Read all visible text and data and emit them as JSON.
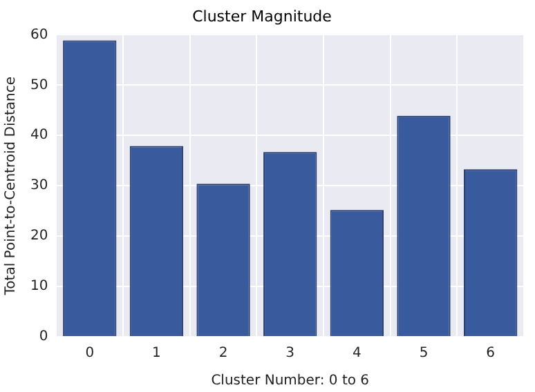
{
  "chart_data": {
    "type": "bar",
    "title": "Cluster Magnitude",
    "xlabel": "Cluster Number: 0 to 6",
    "ylabel": "Total Point-to-Centroid Distance",
    "categories": [
      "0",
      "1",
      "2",
      "3",
      "4",
      "5",
      "6"
    ],
    "values": [
      58.9,
      37.9,
      30.4,
      36.7,
      25.2,
      43.9,
      33.3
    ],
    "color": "#3a5a9e",
    "ylim": [
      0,
      60
    ],
    "yticks": [
      0,
      10,
      20,
      30,
      40,
      50,
      60
    ],
    "grid": true
  }
}
